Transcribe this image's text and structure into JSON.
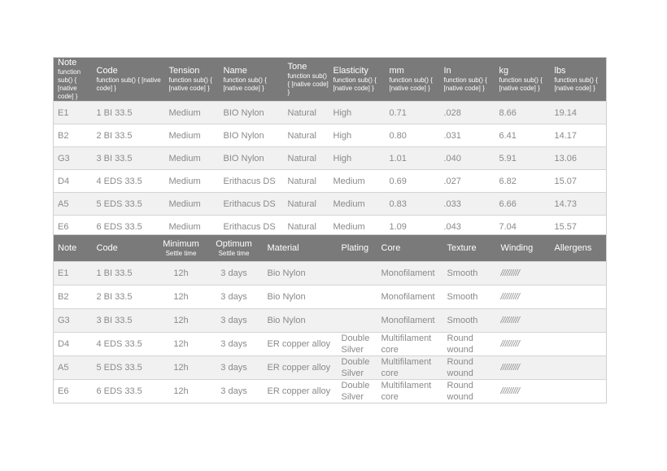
{
  "table1": {
    "headers": [
      "Note",
      "Code",
      "Tension",
      "Name",
      "Tone",
      "Elasticity",
      "mm",
      "In",
      "kg",
      "lbs"
    ],
    "rows": [
      [
        "E1",
        "1 BI 33.5",
        "Medium",
        "BIO Nylon",
        "Natural",
        "High",
        "0.71",
        ".028",
        "8.66",
        "19.14"
      ],
      [
        "B2",
        "2 BI 33.5",
        "Medium",
        "BIO Nylon",
        "Natural",
        "High",
        "0.80",
        ".031",
        "6.41",
        "14.17"
      ],
      [
        "G3",
        "3 BI 33.5",
        "Medium",
        "BIO Nylon",
        "Natural",
        "High",
        "1.01",
        ".040",
        "5.91",
        "13.06"
      ],
      [
        "D4",
        "4 EDS 33.5",
        "Medium",
        "Erithacus DS",
        "Natural",
        "Medium",
        "0.69",
        ".027",
        "6.82",
        "15.07"
      ],
      [
        "A5",
        "5 EDS 33.5",
        "Medium",
        "Erithacus DS",
        "Natural",
        "Medium",
        "0.83",
        ".033",
        "6.66",
        "14.73"
      ],
      [
        "E6",
        "6 EDS 33.5",
        "Medium",
        "Erithacus DS",
        "Natural",
        "Medium",
        "1.09",
        ".043",
        "7.04",
        "15.57"
      ]
    ]
  },
  "table2": {
    "headers": [
      {
        "label": "Note"
      },
      {
        "label": "Code"
      },
      {
        "label": "Minimum",
        "sub": "Settle time"
      },
      {
        "label": "Optimum",
        "sub": "Settle time"
      },
      {
        "label": "Material"
      },
      {
        "label": "Plating"
      },
      {
        "label": "Core"
      },
      {
        "label": "Texture"
      },
      {
        "label": "Winding"
      },
      {
        "label": "Allergens"
      }
    ],
    "rows": [
      [
        "E1",
        "1 BI 33.5",
        "12h",
        "3 days",
        "Bio Nylon",
        "",
        "Monofilament",
        "Smooth",
        "/////////",
        ""
      ],
      [
        "B2",
        "2 BI 33.5",
        "12h",
        "3 days",
        "Bio Nylon",
        "",
        "Monofilament",
        "Smooth",
        "/////////",
        ""
      ],
      [
        "G3",
        "3 BI 33.5",
        "12h",
        "3 days",
        "Bio Nylon",
        "",
        "Monofilament",
        "Smooth",
        "/////////",
        ""
      ],
      [
        "D4",
        "4 EDS 33.5",
        "12h",
        "3 days",
        "ER copper alloy",
        "Double Silver",
        "Multifilament core",
        "Round wound",
        "/////////",
        ""
      ],
      [
        "A5",
        "5 EDS 33.5",
        "12h",
        "3 days",
        "ER copper alloy",
        "Double Silver",
        "Multifilament core",
        "Round wound",
        "/////////",
        ""
      ],
      [
        "E6",
        "6 EDS 33.5",
        "12h",
        "3 days",
        "ER copper alloy",
        "Double Silver",
        "Multifilament core",
        "Round wound",
        "/////////",
        ""
      ]
    ]
  }
}
